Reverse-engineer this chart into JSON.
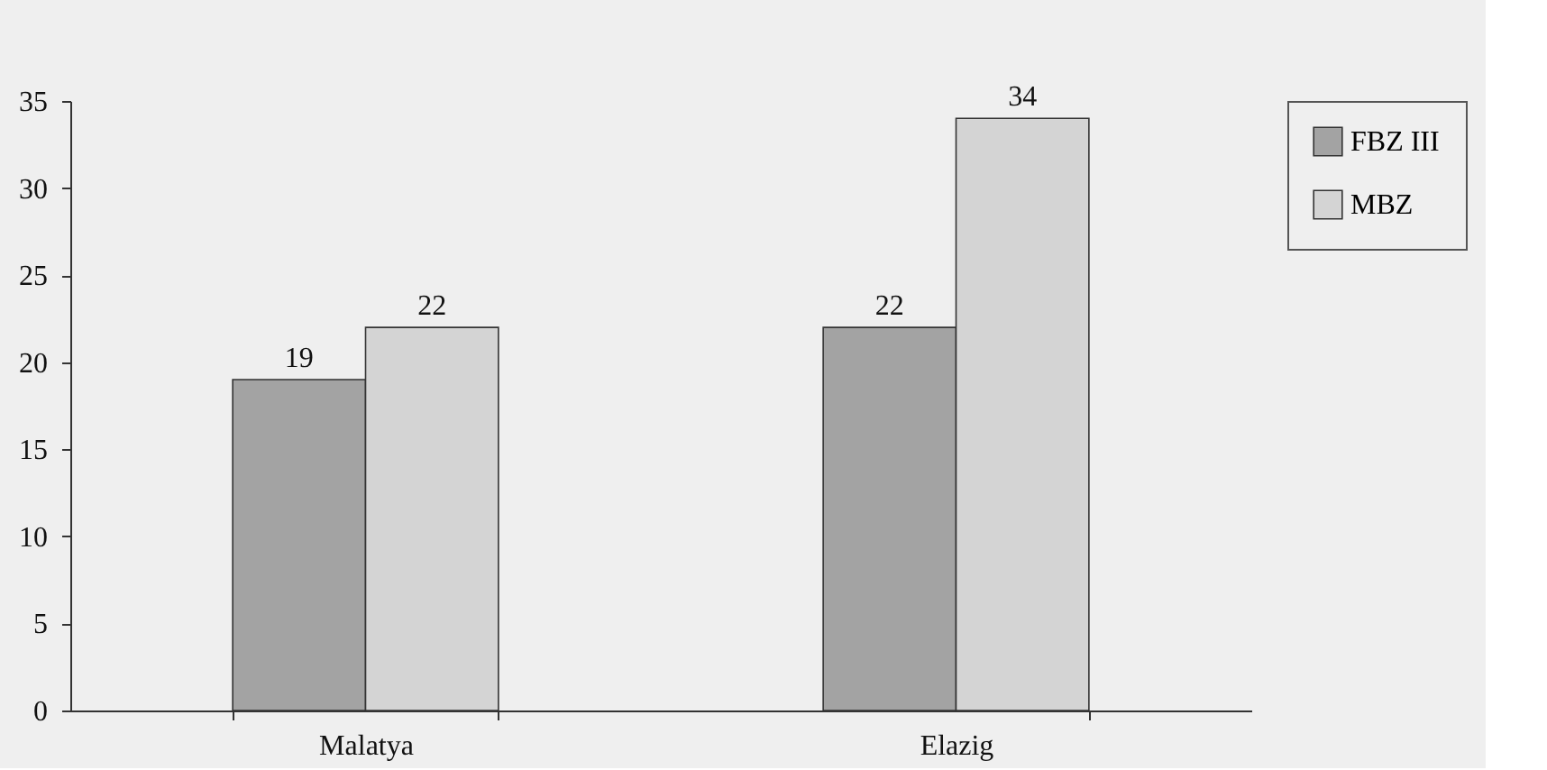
{
  "chart_data": {
    "type": "bar",
    "categories": [
      "Malatya",
      "Elazig"
    ],
    "series": [
      {
        "name": "FBZ III",
        "color": "#a3a3a3",
        "values": [
          19,
          22
        ]
      },
      {
        "name": "MBZ",
        "color": "#d4d4d4",
        "values": [
          22,
          34
        ]
      }
    ],
    "ylim": [
      0,
      35
    ],
    "yticks": [
      0,
      5,
      10,
      15,
      20,
      25,
      30,
      35
    ],
    "grid": false,
    "legend": "right",
    "data_labels": true
  }
}
